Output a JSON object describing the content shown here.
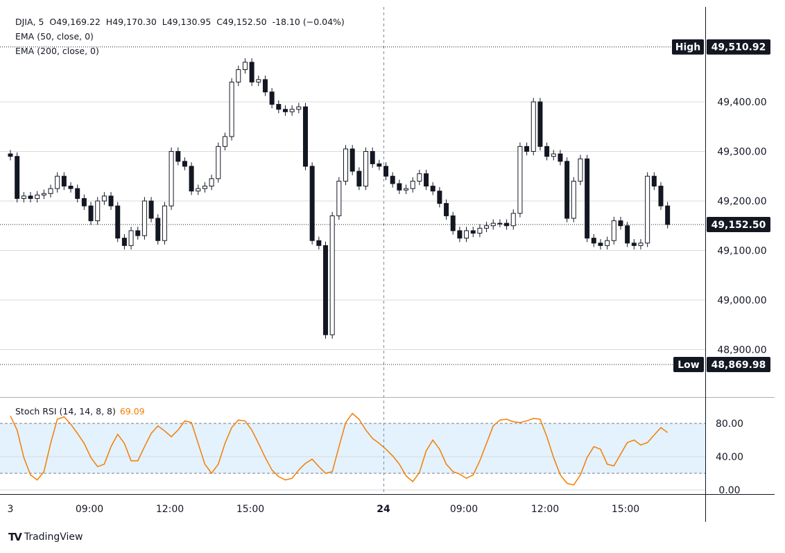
{
  "header": {
    "symbol_line": "DJIA, 5  O49,169.22  H49,170.30  L49,130.95  C49,152.50  -18.10 (−0.04%)",
    "ema1": "EMA (50, close, 0)",
    "ema2": "EMA (200, close, 0)"
  },
  "stoch": {
    "label": "Stoch RSI (14, 14, 8, 8)",
    "value": "69.09"
  },
  "markers": {
    "high_label": "High",
    "high_value": "49,510.92",
    "low_label": "Low",
    "low_value": "48,869.98",
    "last_value": "49,152.50"
  },
  "logo": {
    "text": "TradingView"
  },
  "colors": {
    "candle": "#131722",
    "stoch_line": "#f57c00",
    "stoch_band": "#e3f2fd",
    "grid": "#d9d9d9"
  },
  "chart_data": [
    {
      "type": "candlestick",
      "ylim": [
        48830,
        49530
      ],
      "yticks": [
        "49,400.00",
        "49,300.00",
        "49,200.00",
        "49,100.00",
        "49,000.00",
        "48,900.00"
      ],
      "ytick_values": [
        49400,
        49300,
        49200,
        49100,
        49000,
        48900
      ],
      "high": 49510.92,
      "low": 48869.98,
      "last": 49152.5,
      "xticks": [
        "3",
        "09:00",
        "12:00",
        "15:00",
        "24",
        "09:00",
        "12:00",
        "15:00"
      ],
      "close": [
        49290,
        49205,
        49210,
        49205,
        49212,
        49215,
        49225,
        49250,
        49230,
        49225,
        49205,
        49190,
        49160,
        49200,
        49210,
        49190,
        49125,
        49110,
        49140,
        49130,
        49200,
        49165,
        49120,
        49190,
        49300,
        49280,
        49270,
        49220,
        49225,
        49230,
        49245,
        49310,
        49330,
        49440,
        49465,
        49480,
        49440,
        49445,
        49420,
        49395,
        49385,
        49380,
        49385,
        49390,
        49270,
        49120,
        49110,
        48930,
        49170,
        49240,
        49305,
        49260,
        49230,
        49300,
        49275,
        49270,
        49250,
        49235,
        49222,
        49225,
        49240,
        49255,
        49230,
        49220,
        49195,
        49170,
        49140,
        49125,
        49140,
        49135,
        49145,
        49150,
        49155,
        49155,
        49150,
        49175,
        49310,
        49300,
        49400,
        49310,
        49290,
        49295,
        49280,
        49165,
        49240,
        49285,
        49125,
        49115,
        49110,
        49120,
        49160,
        49150,
        49115,
        49110,
        49115,
        49250,
        49230,
        49190,
        49152.5
      ]
    },
    {
      "type": "line",
      "name": "Stoch RSI",
      "ylim": [
        0,
        100
      ],
      "yticks": [
        "80.00",
        "40.00",
        "0.00"
      ],
      "ytick_values": [
        80,
        40,
        0
      ],
      "band": [
        20,
        80
      ],
      "values": [
        89,
        72,
        39,
        18,
        12,
        22,
        56,
        85,
        88,
        79,
        68,
        56,
        39,
        28,
        31,
        52,
        67,
        56,
        35,
        35,
        52,
        68,
        77,
        71,
        64,
        72,
        83,
        81,
        56,
        31,
        20,
        31,
        56,
        75,
        84,
        83,
        72,
        56,
        39,
        24,
        16,
        12,
        14,
        24,
        32,
        37,
        28,
        20,
        22,
        52,
        81,
        92,
        85,
        72,
        62,
        56,
        49,
        41,
        31,
        17,
        10,
        21,
        47,
        60,
        49,
        31,
        22,
        19,
        14,
        18,
        35,
        56,
        77,
        84,
        85,
        82,
        81,
        83,
        86,
        85,
        64,
        39,
        18,
        8,
        6,
        18,
        39,
        52,
        49,
        31,
        29,
        43,
        57,
        60,
        54,
        57,
        66,
        75,
        69
      ]
    }
  ]
}
